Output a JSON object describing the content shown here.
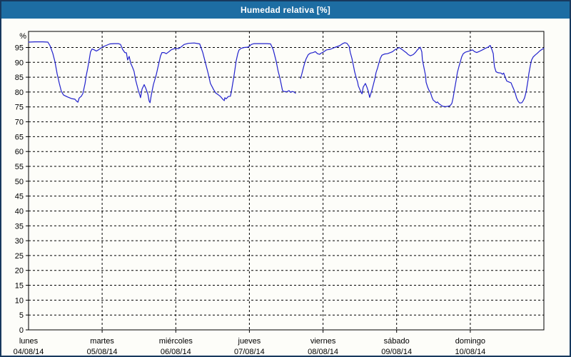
{
  "window": {
    "title": "Humedad relativa [%]"
  },
  "colors": {
    "window_border": "#17395E",
    "titlebar_bg": "#1D6DA3",
    "titlebar_text": "#FFFFFF",
    "page_bg": "#FDFDF9",
    "plot_border": "#000000",
    "grid": "#000000",
    "tick_text": "#000000",
    "line": "#2121CC"
  },
  "chart_data": {
    "type": "line",
    "title": "Humedad relativa [%]",
    "ylabel": "%",
    "ylim": [
      0,
      100.4
    ],
    "yticks": [
      0,
      5,
      10,
      15,
      20,
      25,
      30,
      35,
      40,
      45,
      50,
      55,
      60,
      65,
      70,
      75,
      80,
      85,
      90,
      95
    ],
    "xlim_hours": [
      0,
      168
    ],
    "day_boundaries_hours": [
      24,
      48,
      72,
      96,
      120,
      144
    ],
    "grid": "dashed",
    "legend": "none",
    "x_day_labels": [
      {
        "name": "lunes",
        "date": "04/08/14"
      },
      {
        "name": "martes",
        "date": "05/08/14"
      },
      {
        "name": "miércoles",
        "date": "06/08/14"
      },
      {
        "name": "jueves",
        "date": "07/08/14"
      },
      {
        "name": "viernes",
        "date": "08/08/14"
      },
      {
        "name": "sábado",
        "date": "09/08/14"
      },
      {
        "name": "domingo",
        "date": "10/08/14"
      }
    ],
    "series": [
      {
        "name": "Humedad relativa",
        "unit": "%",
        "color": "#2121CC",
        "segments": [
          [
            [
              0,
              96.8
            ],
            [
              2,
              96.9
            ],
            [
              4.7,
              96.9
            ],
            [
              6.3,
              96.8
            ],
            [
              7,
              95.6
            ],
            [
              7.9,
              93
            ],
            [
              8.6,
              90.2
            ],
            [
              9.3,
              86.2
            ],
            [
              10,
              83
            ],
            [
              10.7,
              80.2
            ],
            [
              11.4,
              79
            ],
            [
              12.6,
              78.4
            ],
            [
              14,
              77.8
            ],
            [
              15.1,
              77.6
            ],
            [
              15.6,
              77
            ],
            [
              16.1,
              76.6
            ],
            [
              16.5,
              78
            ],
            [
              17.2,
              78.6
            ],
            [
              17.7,
              79.5
            ],
            [
              18.4,
              82.8
            ],
            [
              18.8,
              85.5
            ],
            [
              19.3,
              88
            ],
            [
              19.8,
              91
            ],
            [
              20.2,
              93.5
            ],
            [
              20.7,
              94.5
            ],
            [
              21.4,
              94.2
            ],
            [
              22.1,
              93.8
            ],
            [
              22.8,
              94.2
            ],
            [
              23.7,
              94.9
            ],
            [
              24,
              95.1
            ],
            [
              25.1,
              95.6
            ],
            [
              26.5,
              96.2
            ],
            [
              27.9,
              96.3
            ],
            [
              29.3,
              96.3
            ],
            [
              30,
              96
            ],
            [
              30.7,
              94.3
            ],
            [
              31.4,
              93.3
            ],
            [
              31.9,
              93.2
            ],
            [
              32.3,
              90.8
            ],
            [
              32.8,
              92
            ],
            [
              33.3,
              89.7
            ],
            [
              33.9,
              88.3
            ],
            [
              34.4,
              87
            ],
            [
              34.9,
              84.1
            ],
            [
              35.8,
              80.5
            ],
            [
              36.3,
              78.9
            ],
            [
              36.5,
              78.1
            ],
            [
              37,
              81
            ],
            [
              37.7,
              82.5
            ],
            [
              38.2,
              81.3
            ],
            [
              38.9,
              79.3
            ],
            [
              39.3,
              77
            ],
            [
              39.6,
              76.4
            ],
            [
              40,
              78.9
            ],
            [
              40.7,
              82.5
            ],
            [
              41.6,
              85.7
            ],
            [
              42.3,
              88.9
            ],
            [
              43,
              92.1
            ],
            [
              43.5,
              93.3
            ],
            [
              44.2,
              93.3
            ],
            [
              44.9,
              92.9
            ],
            [
              45.8,
              93.6
            ],
            [
              46.5,
              94.2
            ],
            [
              47.5,
              94.6
            ],
            [
              48,
              94.7
            ],
            [
              48.9,
              94.6
            ],
            [
              49.8,
              95.2
            ],
            [
              50.7,
              96
            ],
            [
              52.1,
              96.4
            ],
            [
              54,
              96.5
            ],
            [
              55.8,
              96.2
            ],
            [
              56.8,
              93.3
            ],
            [
              57.5,
              90.5
            ],
            [
              58.2,
              87.7
            ],
            [
              58.6,
              86.1
            ],
            [
              59.3,
              82.9
            ],
            [
              60.3,
              80.9
            ],
            [
              61,
              79.7
            ],
            [
              61.7,
              79.2
            ],
            [
              62.6,
              78.5
            ],
            [
              63.3,
              77.6
            ],
            [
              63.8,
              77.1
            ],
            [
              64,
              78.1
            ],
            [
              64.4,
              77.7
            ],
            [
              65.1,
              78.5
            ],
            [
              65.8,
              78.6
            ],
            [
              66.1,
              80
            ],
            [
              66.5,
              82.5
            ],
            [
              66.9,
              84.9
            ],
            [
              67.3,
              87.7
            ],
            [
              67.7,
              90.5
            ],
            [
              68.2,
              92.9
            ],
            [
              68.6,
              94.1
            ],
            [
              69.3,
              94.7
            ],
            [
              70.3,
              95
            ],
            [
              71.4,
              95.1
            ],
            [
              72,
              95.4
            ],
            [
              72.6,
              96
            ],
            [
              73.5,
              96.3
            ],
            [
              75.4,
              96.3
            ],
            [
              77.7,
              96.3
            ],
            [
              78.9,
              96.2
            ],
            [
              79.8,
              94.2
            ],
            [
              80.7,
              90.5
            ],
            [
              81.4,
              86.9
            ],
            [
              81.9,
              84.9
            ],
            [
              82.4,
              82.5
            ],
            [
              82.8,
              80.5
            ],
            [
              83.3,
              80.2
            ],
            [
              84.2,
              80.1
            ],
            [
              84.9,
              80.5
            ],
            [
              85.4,
              79.9
            ],
            [
              85.9,
              80.2
            ],
            [
              86.6,
              80
            ],
            [
              87,
              79.6
            ]
          ],
          [
            [
              88.7,
              84.6
            ],
            [
              89.1,
              86.1
            ],
            [
              89.6,
              88.2
            ],
            [
              90,
              89.7
            ],
            [
              90.5,
              91.2
            ],
            [
              91.2,
              92.6
            ],
            [
              91.9,
              93.1
            ],
            [
              92.8,
              93.3
            ],
            [
              93.5,
              93.6
            ],
            [
              94.2,
              92.9
            ],
            [
              94.9,
              92.7
            ],
            [
              95.4,
              93.1
            ],
            [
              96,
              93.4
            ],
            [
              97.2,
              94.2
            ],
            [
              98.4,
              94.4
            ],
            [
              99.8,
              95
            ],
            [
              101.4,
              95.6
            ],
            [
              102.4,
              96.3
            ],
            [
              103.1,
              96.6
            ],
            [
              103.8,
              96.4
            ],
            [
              104.5,
              95.4
            ],
            [
              104.9,
              93.3
            ],
            [
              105.4,
              91.4
            ],
            [
              105.9,
              89
            ],
            [
              106.3,
              86.9
            ],
            [
              106.8,
              84.9
            ],
            [
              107.3,
              83.3
            ],
            [
              107.5,
              82.1
            ],
            [
              108,
              80.9
            ],
            [
              108.4,
              79.9
            ],
            [
              108.7,
              79.4
            ],
            [
              109.1,
              81.7
            ],
            [
              109.8,
              82.9
            ],
            [
              110.3,
              81.7
            ],
            [
              110.8,
              80.1
            ],
            [
              111.2,
              78.2
            ],
            [
              111.9,
              80.5
            ],
            [
              112.4,
              82.5
            ],
            [
              112.9,
              84.5
            ],
            [
              113.3,
              86.6
            ],
            [
              113.8,
              88.2
            ],
            [
              114.2,
              89.7
            ],
            [
              114.7,
              91.4
            ],
            [
              115.2,
              92.4
            ],
            [
              116.1,
              92.8
            ],
            [
              117,
              92.9
            ],
            [
              118,
              93.3
            ],
            [
              118.7,
              93.6
            ],
            [
              119.4,
              94.2
            ],
            [
              120,
              94.5
            ],
            [
              120.8,
              95
            ],
            [
              121.9,
              94.2
            ],
            [
              123.1,
              93.3
            ],
            [
              123.8,
              92.6
            ],
            [
              124.5,
              92.2
            ],
            [
              125.4,
              92.6
            ],
            [
              126.1,
              93.3
            ],
            [
              126.8,
              94.2
            ],
            [
              127.7,
              95.1
            ],
            [
              128.2,
              93.5
            ],
            [
              128.4,
              90.9
            ],
            [
              128.9,
              88.2
            ],
            [
              129.4,
              85.7
            ],
            [
              129.6,
              83.3
            ],
            [
              130.1,
              81.7
            ],
            [
              130.5,
              80.7
            ],
            [
              131,
              79.9
            ],
            [
              131.5,
              78.3
            ],
            [
              131.9,
              77.3
            ],
            [
              132.4,
              76.9
            ],
            [
              132.9,
              76.4
            ],
            [
              133.3,
              76.7
            ],
            [
              133.8,
              76.1
            ],
            [
              134.3,
              75.7
            ],
            [
              135,
              75.2
            ],
            [
              135.9,
              75.1
            ],
            [
              136.8,
              75.2
            ],
            [
              137.5,
              75.5
            ],
            [
              138,
              76.2
            ],
            [
              138.4,
              78
            ],
            [
              138.9,
              81
            ],
            [
              139.4,
              84
            ],
            [
              139.8,
              86.6
            ],
            [
              140.3,
              88.6
            ],
            [
              140.8,
              90.3
            ],
            [
              141.2,
              91.8
            ],
            [
              141.7,
              92.9
            ],
            [
              142.4,
              93.4
            ],
            [
              143.3,
              93.7
            ],
            [
              144,
              93.9
            ],
            [
              144.7,
              94.2
            ],
            [
              145.4,
              93.6
            ],
            [
              146.1,
              93.3
            ],
            [
              147,
              93.7
            ],
            [
              148,
              94.2
            ],
            [
              148.9,
              94.7
            ],
            [
              149.8,
              95.1
            ],
            [
              150.5,
              95.7
            ],
            [
              151,
              94.5
            ],
            [
              151.5,
              92.9
            ],
            [
              151.7,
              90.5
            ],
            [
              151.9,
              88.5
            ],
            [
              152.4,
              86.8
            ],
            [
              153.1,
              86.5
            ],
            [
              154,
              86.4
            ],
            [
              154.5,
              86
            ],
            [
              154.9,
              86.4
            ],
            [
              155.4,
              84.9
            ],
            [
              155.9,
              83.7
            ],
            [
              156.6,
              83.4
            ],
            [
              157.3,
              83.1
            ],
            [
              157.7,
              82.1
            ],
            [
              158.2,
              80.9
            ],
            [
              158.7,
              79.5
            ],
            [
              159.1,
              78
            ],
            [
              159.6,
              76.9
            ],
            [
              160.1,
              76.3
            ],
            [
              160.8,
              76.4
            ],
            [
              161.2,
              77
            ],
            [
              161.7,
              78
            ],
            [
              162.2,
              80
            ],
            [
              162.6,
              82.5
            ],
            [
              162.9,
              84.5
            ],
            [
              163.1,
              86.1
            ],
            [
              163.6,
              89
            ],
            [
              164,
              90.8
            ],
            [
              164.5,
              91.8
            ],
            [
              165.2,
              92.5
            ],
            [
              165.9,
              93.1
            ],
            [
              166.6,
              93.8
            ],
            [
              167.3,
              94.3
            ],
            [
              168,
              94.7
            ]
          ]
        ]
      }
    ]
  }
}
